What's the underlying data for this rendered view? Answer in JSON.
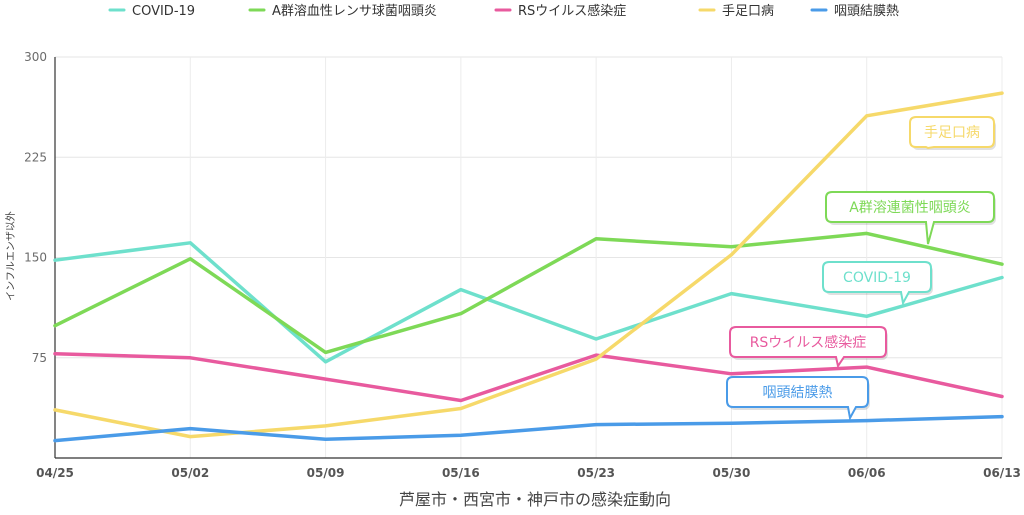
{
  "chart_data": {
    "type": "line",
    "title": "芦屋市・西宮市・神戸市の感染症動向",
    "xlabel": "",
    "ylabel": "インフルエンザ以外",
    "categories": [
      "04/25",
      "05/02",
      "05/09",
      "05/16",
      "05/23",
      "05/30",
      "06/06",
      "06/13"
    ],
    "ylim": [
      0,
      300
    ],
    "yticks": [
      75,
      150,
      225,
      300
    ],
    "grid": true,
    "legend_position": "top",
    "series": [
      {
        "name": "COVID-19",
        "color": "#6EE0CC",
        "values": [
          148,
          161,
          72,
          126,
          89,
          123,
          106,
          135
        ]
      },
      {
        "name": "A群溶血性レンサ球菌咽頭炎",
        "color": "#7ED957",
        "values": [
          99,
          149,
          79,
          108,
          164,
          158,
          168,
          145
        ]
      },
      {
        "name": "RSウイルス感染症",
        "color": "#E85A9E",
        "values": [
          78,
          75,
          59,
          43,
          77,
          63,
          68,
          46
        ]
      },
      {
        "name": "手足口病",
        "color": "#F6D96A",
        "values": [
          36,
          16,
          24,
          37,
          74,
          152,
          256,
          273
        ]
      },
      {
        "name": "咽頭結膜熱",
        "color": "#4A9BE8",
        "values": [
          13,
          22,
          14,
          17,
          25,
          26,
          28,
          31
        ]
      }
    ],
    "annotations": [
      {
        "series": 3,
        "text": "手足口病"
      },
      {
        "series": 1,
        "text": "A群溶連菌性咽頭炎"
      },
      {
        "series": 0,
        "text": "COVID-19"
      },
      {
        "series": 2,
        "text": "RSウイルス感染症"
      },
      {
        "series": 4,
        "text": "咽頭結膜熱"
      }
    ]
  }
}
